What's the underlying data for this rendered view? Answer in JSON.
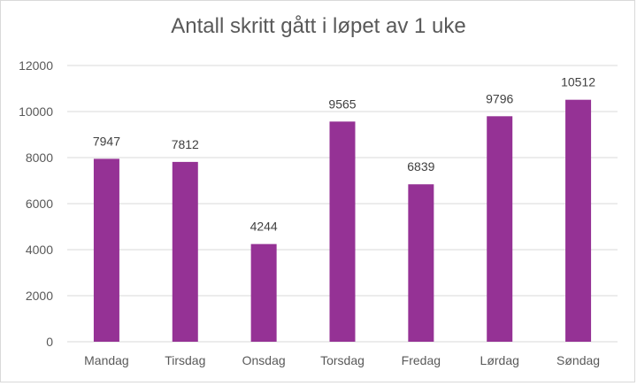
{
  "chart_data": {
    "type": "bar",
    "title": "Antall skritt gått i løpet av 1 uke",
    "categories": [
      "Mandag",
      "Tirsdag",
      "Onsdag",
      "Torsdag",
      "Fredag",
      "Lørdag",
      "Søndag"
    ],
    "values": [
      7947,
      7812,
      4244,
      9565,
      6839,
      9796,
      10512
    ],
    "ylim": [
      0,
      12000
    ],
    "yticks": [
      0,
      2000,
      4000,
      6000,
      8000,
      10000,
      12000
    ],
    "grid": true,
    "legend": "none",
    "bar_color": "#953295",
    "grid_color": "#d9d9d9"
  }
}
